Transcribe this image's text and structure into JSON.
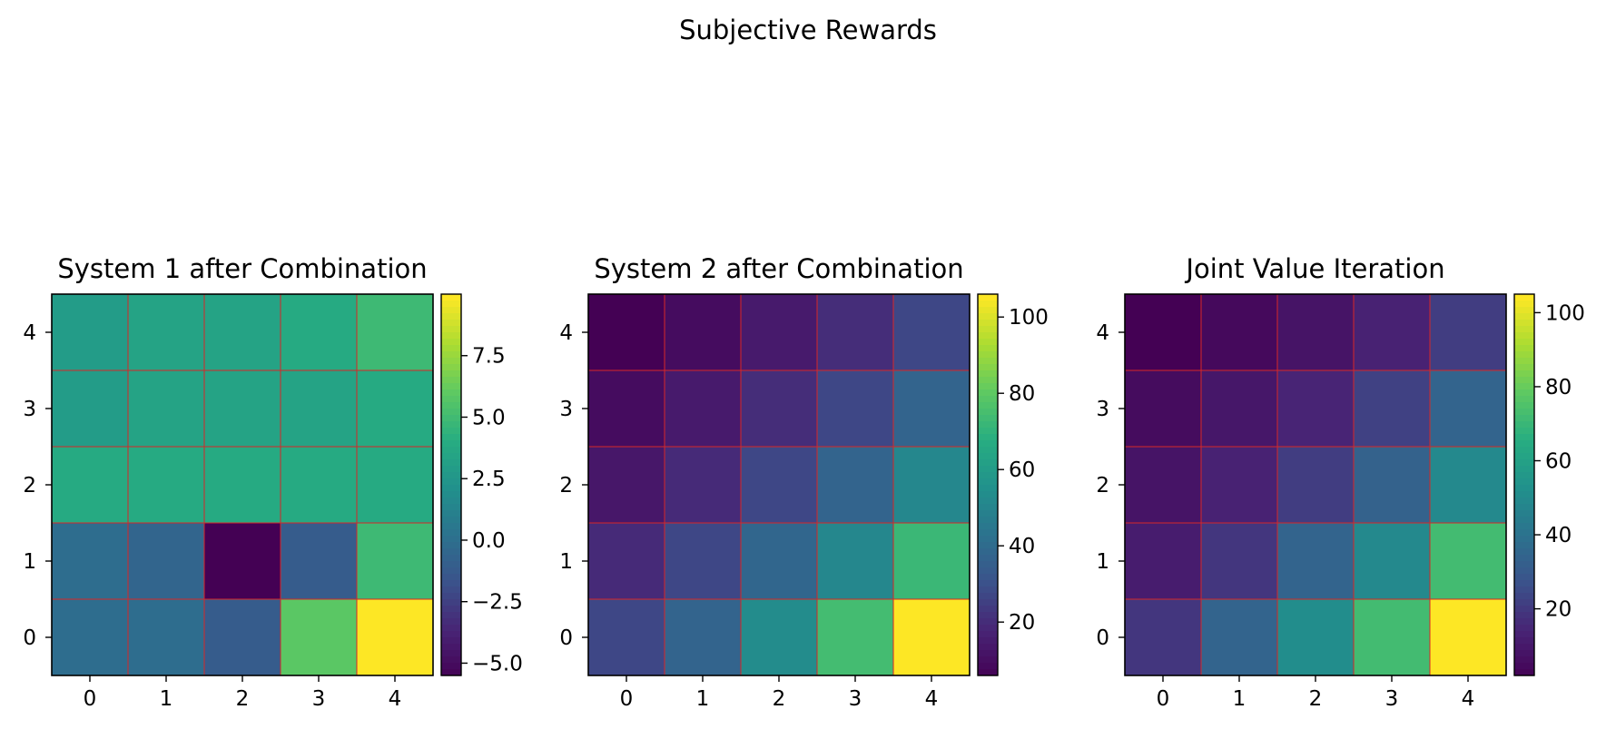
{
  "title": "Subjective Rewards",
  "colormap": "viridis",
  "cell_border_color": "#d62728",
  "chart_data": [
    {
      "type": "heatmap",
      "title": "System 1 after Combination",
      "x": [
        0,
        1,
        2,
        3,
        4
      ],
      "y": [
        0,
        1,
        2,
        3,
        4
      ],
      "x_ticks": [
        "0",
        "1",
        "2",
        "3",
        "4"
      ],
      "y_ticks": [
        "0",
        "1",
        "2",
        "3",
        "4"
      ],
      "values_by_row_y": [
        [
          0.0,
          0.0,
          -1.0,
          6.0,
          10.0
        ],
        [
          0.0,
          -0.5,
          -5.5,
          -1.0,
          5.0
        ],
        [
          4.0,
          4.0,
          4.0,
          4.0,
          4.0
        ],
        [
          3.0,
          3.5,
          3.5,
          3.5,
          4.0
        ],
        [
          3.0,
          3.5,
          3.5,
          4.0,
          5.0
        ]
      ],
      "color_range": [
        -5.5,
        10.0
      ],
      "colorbar_ticks": [
        "−5.0",
        "−2.5",
        "0.0",
        "2.5",
        "5.0",
        "7.5"
      ],
      "colorbar_tick_values": [
        -5.0,
        -2.5,
        0.0,
        2.5,
        5.0,
        7.5
      ]
    },
    {
      "type": "heatmap",
      "title": "System 2 after Combination",
      "x": [
        0,
        1,
        2,
        3,
        4
      ],
      "y": [
        0,
        1,
        2,
        3,
        4
      ],
      "x_ticks": [
        "0",
        "1",
        "2",
        "3",
        "4"
      ],
      "y_ticks": [
        "0",
        "1",
        "2",
        "3",
        "4"
      ],
      "values_by_row_y": [
        [
          28,
          38,
          54,
          75,
          106
        ],
        [
          20,
          28,
          39,
          52,
          73
        ],
        [
          14,
          20,
          28,
          38,
          52
        ],
        [
          10,
          15,
          21,
          28,
          38
        ],
        [
          6,
          10,
          15,
          21,
          28
        ]
      ],
      "color_range": [
        6,
        106
      ],
      "colorbar_ticks": [
        "20",
        "40",
        "60",
        "80",
        "100"
      ],
      "colorbar_tick_values": [
        20,
        40,
        60,
        80,
        100
      ]
    },
    {
      "type": "heatmap",
      "title": "Joint Value Iteration",
      "x": [
        0,
        1,
        2,
        3,
        4
      ],
      "y": [
        0,
        1,
        2,
        3,
        4
      ],
      "x_ticks": [
        "0",
        "1",
        "2",
        "3",
        "4"
      ],
      "y_ticks": [
        "0",
        "1",
        "2",
        "3",
        "4"
      ],
      "values_by_row_y": [
        [
          20,
          35,
          52,
          73,
          105
        ],
        [
          12,
          20,
          35,
          50,
          73
        ],
        [
          9,
          14,
          22,
          34,
          50
        ],
        [
          6,
          10,
          15,
          23,
          35
        ],
        [
          2,
          5,
          9,
          14,
          22
        ]
      ],
      "color_range": [
        2,
        105
      ],
      "colorbar_ticks": [
        "20",
        "40",
        "60",
        "80",
        "100"
      ],
      "colorbar_tick_values": [
        20,
        40,
        60,
        80,
        100
      ]
    }
  ]
}
